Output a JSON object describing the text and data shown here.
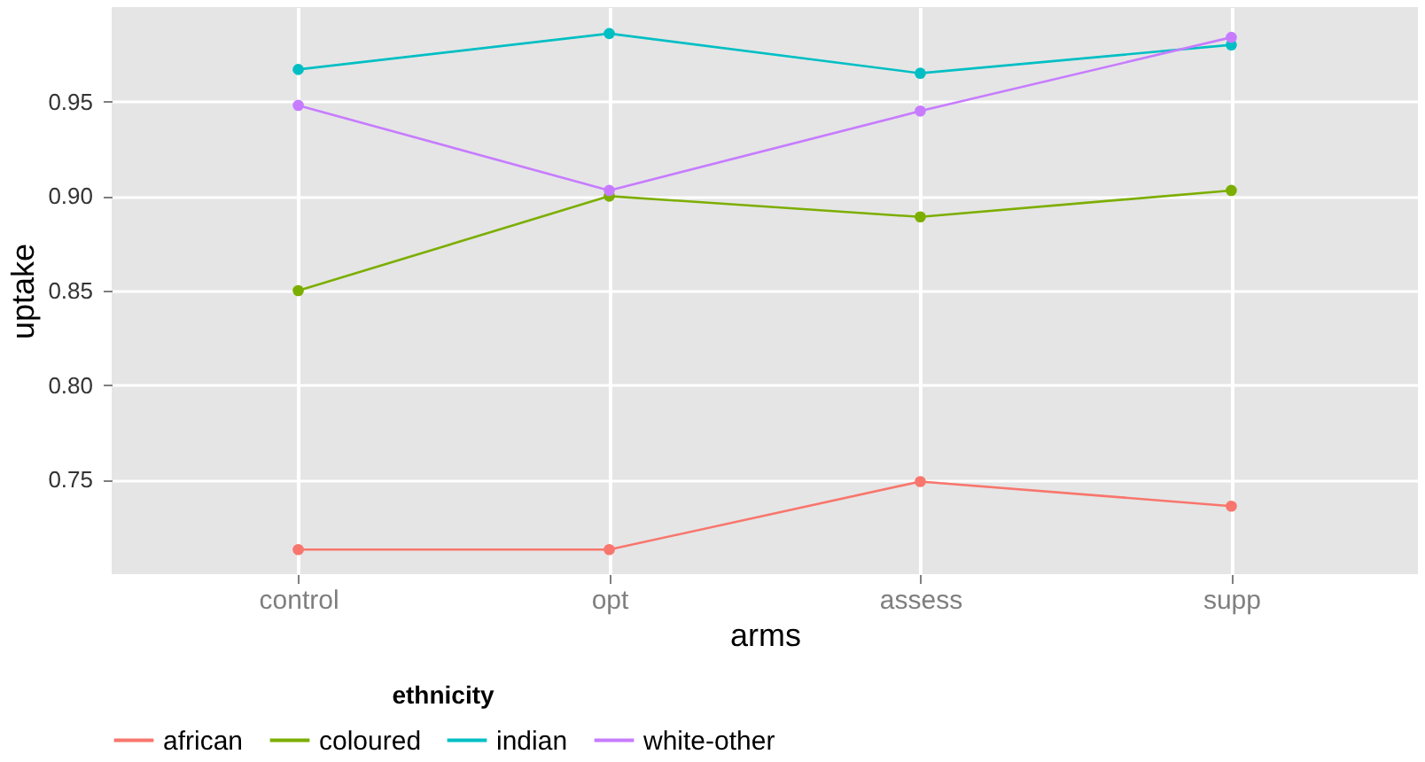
{
  "chart_data": {
    "type": "line",
    "xlabel": "arms",
    "ylabel": "uptake",
    "legend_title": "ethnicity",
    "categories": [
      "control",
      "opt",
      "assess",
      "supp"
    ],
    "series": [
      {
        "name": "african",
        "color": "#f8766d",
        "values": [
          0.713,
          0.713,
          0.749,
          0.736
        ]
      },
      {
        "name": "coloured",
        "color": "#7cae00",
        "values": [
          0.85,
          0.9,
          0.889,
          0.903
        ]
      },
      {
        "name": "indian",
        "color": "#00bfc4",
        "values": [
          0.967,
          0.986,
          0.965,
          0.98
        ]
      },
      {
        "name": "white-other",
        "color": "#c77cff",
        "values": [
          0.948,
          0.903,
          0.945,
          0.984
        ]
      }
    ],
    "ylim": [
      0.7,
      1.0
    ],
    "yticks": [
      {
        "value": 0.75,
        "label": "0.75"
      },
      {
        "value": 0.8,
        "label": "0.80"
      },
      {
        "value": 0.85,
        "label": "0.85"
      },
      {
        "value": 0.9,
        "label": "0.90"
      },
      {
        "value": 0.95,
        "label": "0.95"
      }
    ],
    "grid": true,
    "legend": "bottom",
    "marker": "circle",
    "line_style": "solid"
  }
}
